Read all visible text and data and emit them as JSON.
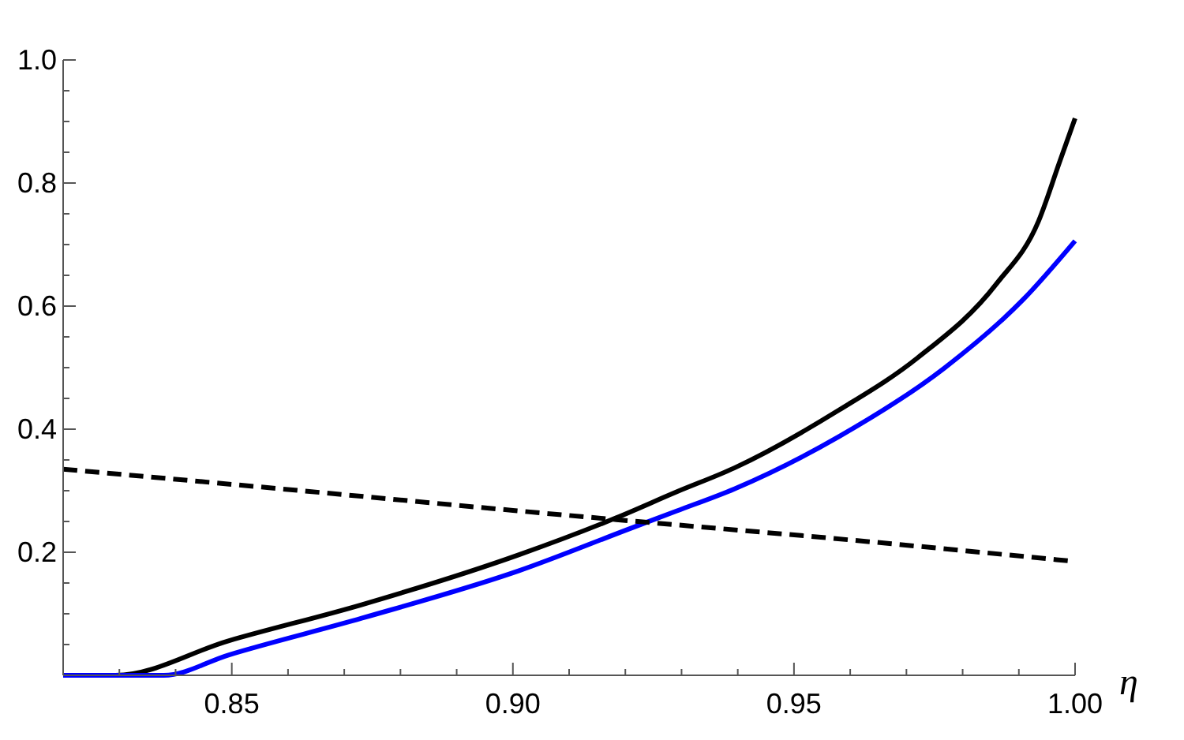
{
  "chart_data": {
    "type": "line",
    "xlabel": "η",
    "xlim": [
      0.82,
      1.0
    ],
    "ylim": [
      0,
      1.0
    ],
    "xticks": [
      {
        "value": 0.82,
        "label": null
      },
      {
        "value": 0.83,
        "label": null
      },
      {
        "value": 0.84,
        "label": null
      },
      {
        "value": 0.85,
        "label": "0.85"
      },
      {
        "value": 0.86,
        "label": null
      },
      {
        "value": 0.87,
        "label": null
      },
      {
        "value": 0.88,
        "label": null
      },
      {
        "value": 0.89,
        "label": null
      },
      {
        "value": 0.9,
        "label": "0.90"
      },
      {
        "value": 0.91,
        "label": null
      },
      {
        "value": 0.92,
        "label": null
      },
      {
        "value": 0.93,
        "label": null
      },
      {
        "value": 0.94,
        "label": null
      },
      {
        "value": 0.95,
        "label": "0.95"
      },
      {
        "value": 0.96,
        "label": null
      },
      {
        "value": 0.97,
        "label": null
      },
      {
        "value": 0.98,
        "label": null
      },
      {
        "value": 0.99,
        "label": null
      },
      {
        "value": 1.0,
        "label": "1.00"
      }
    ],
    "yticks": [
      {
        "value": 0.05,
        "label": null
      },
      {
        "value": 0.1,
        "label": null
      },
      {
        "value": 0.15,
        "label": null
      },
      0.2,
      {
        "value": 0.25,
        "label": null
      },
      {
        "value": 0.3,
        "label": null
      },
      {
        "value": 0.35,
        "label": null
      },
      0.4,
      {
        "value": 0.45,
        "label": null
      },
      {
        "value": 0.5,
        "label": null
      },
      {
        "value": 0.55,
        "label": null
      },
      0.6,
      {
        "value": 0.65,
        "label": null
      },
      {
        "value": 0.7,
        "label": null
      },
      {
        "value": 0.75,
        "label": null
      },
      0.8,
      {
        "value": 0.85,
        "label": null
      },
      {
        "value": 0.9,
        "label": null
      },
      {
        "value": 0.95,
        "label": null
      },
      {
        "value": 1.0,
        "label": "1.0"
      }
    ],
    "grid": false,
    "marker": "none",
    "series": [
      {
        "color": "#000000",
        "line_style": "solid",
        "x": [
          0.82,
          0.8293,
          0.8494,
          0.8732,
          0.9011,
          0.9184,
          0.9291,
          0.9394,
          0.958,
          0.972,
          0.986,
          0.9935,
          0.9972,
          1.0
        ],
        "values": [
          0,
          0,
          0.056,
          0.115,
          0.196,
          0.256,
          0.298,
          0.337,
          0.431,
          0.516,
          0.636,
          0.738,
          0.833,
          0.905
        ]
      },
      {
        "color": "#0000ff",
        "line_style": "solid",
        "x": [
          0.82,
          0.8379,
          0.8494,
          0.8732,
          0.9011,
          0.9207,
          0.9291,
          0.9394,
          0.958,
          0.9767,
          0.9907,
          1.0
        ],
        "values": [
          0,
          0,
          0.033,
          0.093,
          0.17,
          0.238,
          0.267,
          0.303,
          0.388,
          0.499,
          0.61,
          0.706
        ]
      },
      {
        "color": "#000000",
        "line_style": "dashed",
        "x": [
          0.82,
          0.86,
          0.9,
          0.9184,
          0.96,
          1.0
        ],
        "values": [
          0.335,
          0.302,
          0.268,
          0.253,
          0.22,
          0.185
        ]
      }
    ]
  }
}
